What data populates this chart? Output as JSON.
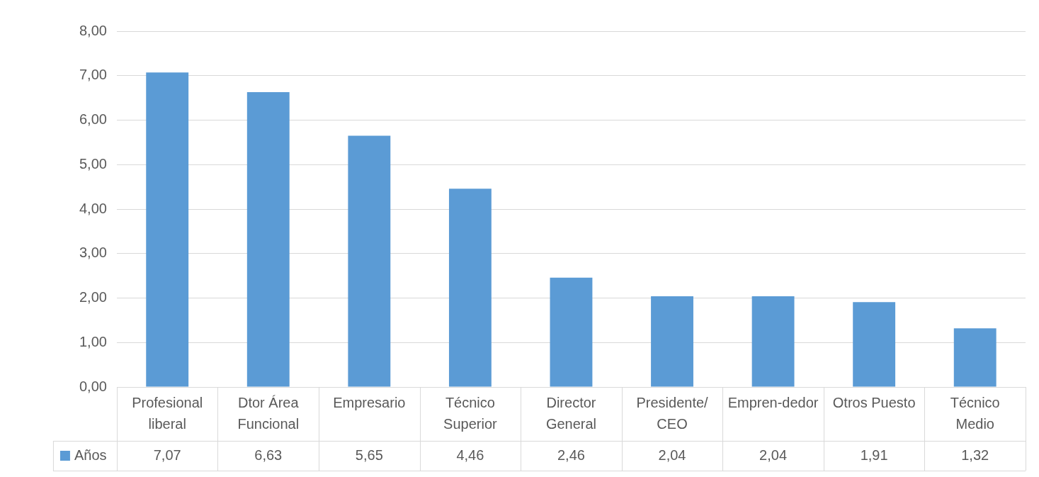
{
  "chart_data": {
    "type": "bar",
    "categories": [
      "Profesional liberal",
      "Dtor Área Funcional",
      "Empresario",
      "Técnico Superior",
      "Director General",
      "Presidente/CEO",
      "Empren-dedor",
      "Otros Puesto",
      "Técnico Medio"
    ],
    "series": [
      {
        "name": "Años",
        "color": "#5b9bd5",
        "values": [
          7.07,
          6.63,
          5.65,
          4.46,
          2.46,
          2.04,
          2.04,
          1.91,
          1.32
        ],
        "value_labels": [
          "7,07",
          "6,63",
          "5,65",
          "4,46",
          "2,46",
          "2,04",
          "2,04",
          "1,91",
          "1,32"
        ]
      }
    ],
    "ylim": [
      0,
      8
    ],
    "yticks": [
      {
        "value": 0,
        "label": "0,00"
      },
      {
        "value": 1,
        "label": "1,00"
      },
      {
        "value": 2,
        "label": "2,00"
      },
      {
        "value": 3,
        "label": "3,00"
      },
      {
        "value": 4,
        "label": "4,00"
      },
      {
        "value": 5,
        "label": "5,00"
      },
      {
        "value": 6,
        "label": "6,00"
      },
      {
        "value": 7,
        "label": "7,00"
      },
      {
        "value": 8,
        "label": "8,00"
      }
    ],
    "grid": "y",
    "legend": "bottom"
  }
}
